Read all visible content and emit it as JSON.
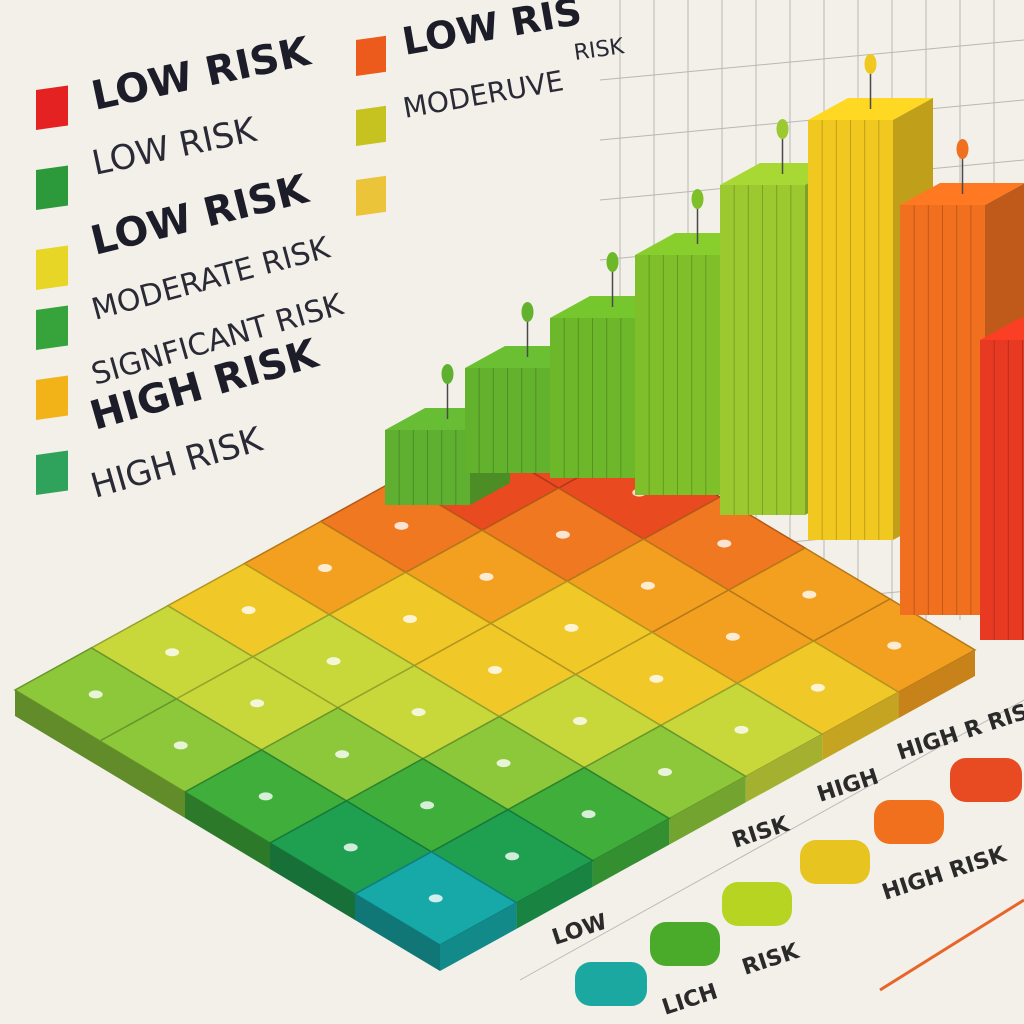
{
  "legend": {
    "items": [
      {
        "label": "LOW RISK"
      },
      {
        "label": "LOW RISK"
      },
      {
        "label": "LOW RISK"
      },
      {
        "label": "MODERATE RISK"
      },
      {
        "label": "SIGNFICANT RISK"
      },
      {
        "label": "HIGH RISK"
      },
      {
        "label": "HIGH RISK"
      }
    ]
  },
  "top_legend": {
    "items": [
      {
        "label": "LOW RIS"
      },
      {
        "label": "MODERUVE"
      },
      {
        "label": "RISK"
      }
    ]
  },
  "bottom_labels": {
    "items": [
      {
        "label": "HIGH R RISK"
      },
      {
        "label": "HIGH"
      },
      {
        "label": "RISK"
      },
      {
        "label": "HIGH RISK"
      },
      {
        "label": "LOW"
      },
      {
        "label": "RISK"
      },
      {
        "label": "LICH"
      }
    ]
  }
}
